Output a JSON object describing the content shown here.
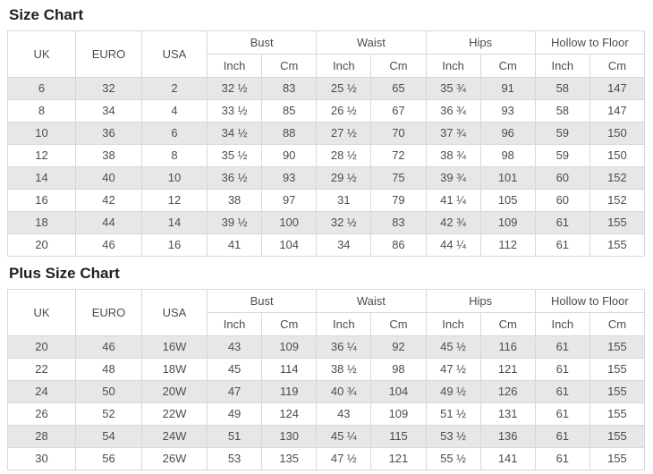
{
  "headers": {
    "uk": "UK",
    "euro": "EURO",
    "usa": "USA",
    "bust": "Bust",
    "waist": "Waist",
    "hips": "Hips",
    "hollow_to_floor": "Hollow to Floor",
    "inch": "Inch",
    "cm": "Cm"
  },
  "colors": {
    "stripe_row": "#e7e7e7",
    "border": "#d8d8d8",
    "cell_text": "#4d4d4d",
    "title_text": "#1f1f1f"
  },
  "chart_data": [
    {
      "type": "table",
      "title": "Size Chart",
      "columns": [
        "UK",
        "EURO",
        "USA",
        "Bust Inch",
        "Bust Cm",
        "Waist Inch",
        "Waist Cm",
        "Hips Inch",
        "Hips Cm",
        "Hollow to Floor Inch",
        "Hollow to Floor Cm"
      ],
      "rows": [
        [
          "6",
          "32",
          "2",
          "32 ½",
          "83",
          "25 ½",
          "65",
          "35 ¾",
          "91",
          "58",
          "147"
        ],
        [
          "8",
          "34",
          "4",
          "33 ½",
          "85",
          "26 ½",
          "67",
          "36 ¾",
          "93",
          "58",
          "147"
        ],
        [
          "10",
          "36",
          "6",
          "34 ½",
          "88",
          "27 ½",
          "70",
          "37 ¾",
          "96",
          "59",
          "150"
        ],
        [
          "12",
          "38",
          "8",
          "35 ½",
          "90",
          "28 ½",
          "72",
          "38 ¾",
          "98",
          "59",
          "150"
        ],
        [
          "14",
          "40",
          "10",
          "36 ½",
          "93",
          "29 ½",
          "75",
          "39 ¾",
          "101",
          "60",
          "152"
        ],
        [
          "16",
          "42",
          "12",
          "38",
          "97",
          "31",
          "79",
          "41 ¼",
          "105",
          "60",
          "152"
        ],
        [
          "18",
          "44",
          "14",
          "39 ½",
          "100",
          "32 ½",
          "83",
          "42 ¾",
          "109",
          "61",
          "155"
        ],
        [
          "20",
          "46",
          "16",
          "41",
          "104",
          "34",
          "86",
          "44 ¼",
          "112",
          "61",
          "155"
        ]
      ]
    },
    {
      "type": "table",
      "title": "Plus Size Chart",
      "columns": [
        "UK",
        "EURO",
        "USA",
        "Bust Inch",
        "Bust Cm",
        "Waist Inch",
        "Waist Cm",
        "Hips Inch",
        "Hips Cm",
        "Hollow to Floor Inch",
        "Hollow to Floor Cm"
      ],
      "rows": [
        [
          "20",
          "46",
          "16W",
          "43",
          "109",
          "36 ¼",
          "92",
          "45 ½",
          "116",
          "61",
          "155"
        ],
        [
          "22",
          "48",
          "18W",
          "45",
          "114",
          "38 ½",
          "98",
          "47 ½",
          "121",
          "61",
          "155"
        ],
        [
          "24",
          "50",
          "20W",
          "47",
          "119",
          "40 ¾",
          "104",
          "49 ½",
          "126",
          "61",
          "155"
        ],
        [
          "26",
          "52",
          "22W",
          "49",
          "124",
          "43",
          "109",
          "51 ½",
          "131",
          "61",
          "155"
        ],
        [
          "28",
          "54",
          "24W",
          "51",
          "130",
          "45 ¼",
          "115",
          "53 ½",
          "136",
          "61",
          "155"
        ],
        [
          "30",
          "56",
          "26W",
          "53",
          "135",
          "47 ½",
          "121",
          "55 ½",
          "141",
          "61",
          "155"
        ]
      ]
    }
  ]
}
